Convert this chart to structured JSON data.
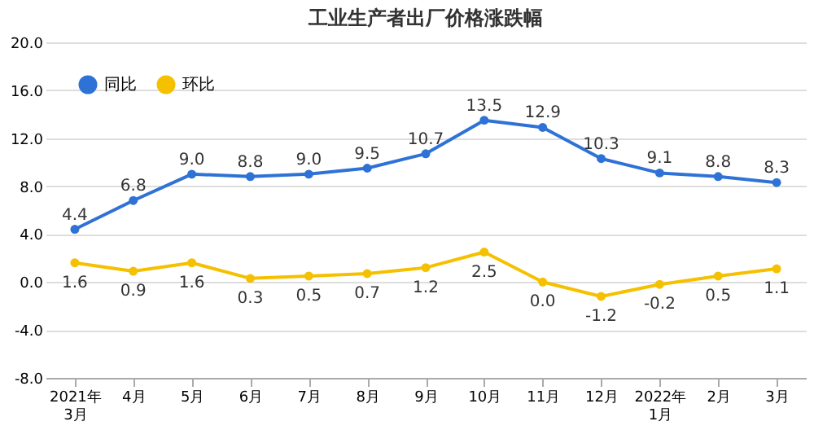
{
  "chart_data": {
    "type": "line",
    "title": "工业生产者出厂价格涨跌幅",
    "categories": [
      "2021年\n3月",
      "4月",
      "5月",
      "6月",
      "7月",
      "8月",
      "9月",
      "10月",
      "11月",
      "12月",
      "2022年\n1月",
      "2月",
      "3月"
    ],
    "series": [
      {
        "name": "同比",
        "color": "#2f72d6",
        "values": [
          4.4,
          6.8,
          9.0,
          8.8,
          9.0,
          9.5,
          10.7,
          13.5,
          12.9,
          10.3,
          9.1,
          8.8,
          8.3
        ],
        "value_labels": [
          "4.4",
          "6.8",
          "9.0",
          "8.8",
          "9.0",
          "9.5",
          "10.7",
          "13.5",
          "12.9",
          "10.3",
          "9.1",
          "8.8",
          "8.3"
        ]
      },
      {
        "name": "环比",
        "color": "#f5c000",
        "values": [
          1.6,
          0.9,
          1.6,
          0.3,
          0.5,
          0.7,
          1.2,
          2.5,
          0.0,
          -1.2,
          -0.2,
          0.5,
          1.1
        ],
        "value_labels": [
          "1.6",
          "0.9",
          "1.6",
          "0.3",
          "0.5",
          "0.7",
          "1.2",
          "2.5",
          "0.0",
          "-1.2",
          "-0.2",
          "0.5",
          "1.1"
        ]
      }
    ],
    "ylim": [
      -8,
      20
    ],
    "yticks": [
      {
        "value": -8,
        "label": "-8.0"
      },
      {
        "value": -4,
        "label": "-4.0"
      },
      {
        "value": 0,
        "label": "0.0"
      },
      {
        "value": 4,
        "label": "4.0"
      },
      {
        "value": 8,
        "label": "8.0"
      },
      {
        "value": 12,
        "label": "12.0"
      },
      {
        "value": 16,
        "label": "16.0"
      },
      {
        "value": 20,
        "label": "20.0"
      }
    ],
    "grid": "y",
    "legend": "top left",
    "marker": "circle",
    "line_style": "solid"
  }
}
